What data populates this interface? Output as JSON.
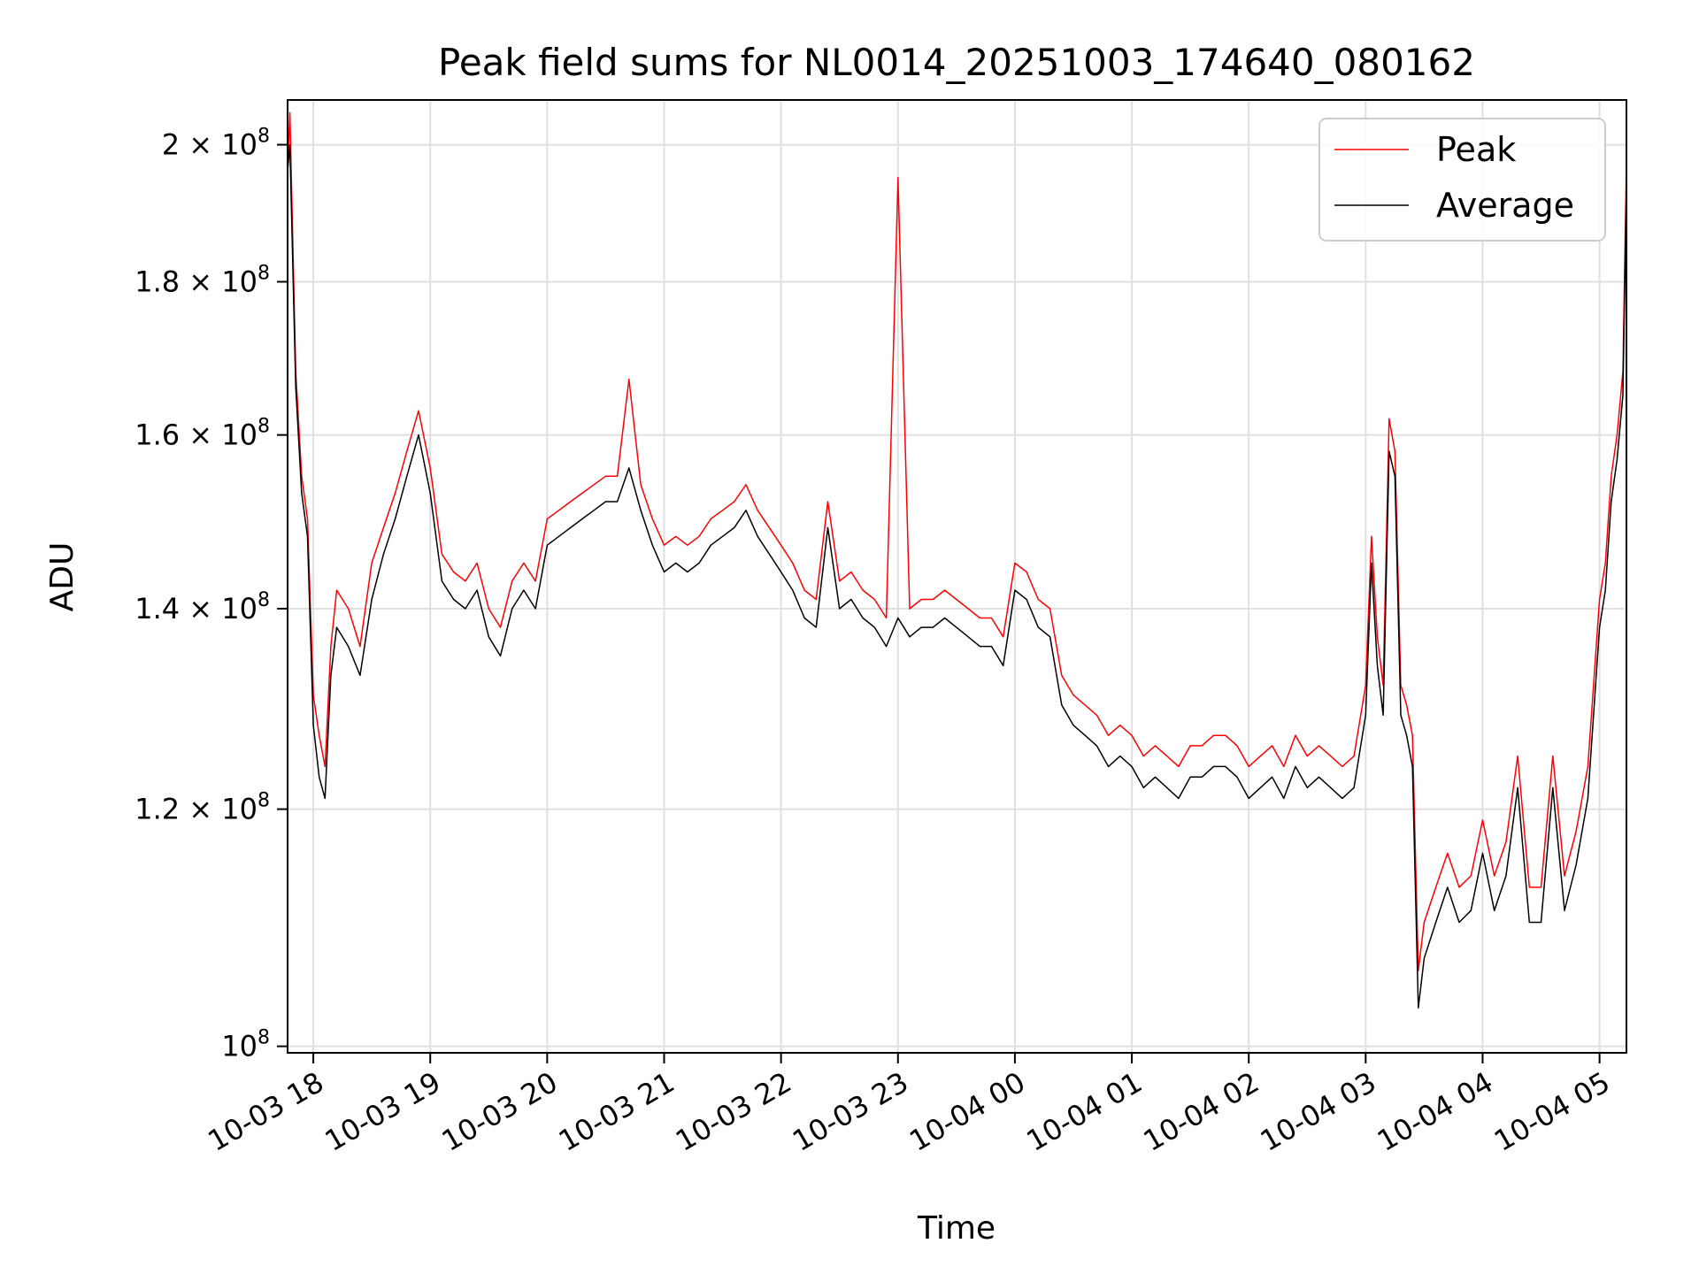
{
  "chart_data": {
    "type": "line",
    "title": "Peak field sums for NL0014_20251003_174640_080162",
    "xlabel": "Time",
    "ylabel": "ADU",
    "yscale": "log",
    "ylim": [
      99500000,
      207000000
    ],
    "xlim_hours": [
      -0.22,
      11.23
    ],
    "grid": true,
    "legend_position": "top-right",
    "x_ticks": [
      {
        "hour": 0,
        "label": "10-03 18"
      },
      {
        "hour": 1,
        "label": "10-03 19"
      },
      {
        "hour": 2,
        "label": "10-03 20"
      },
      {
        "hour": 3,
        "label": "10-03 21"
      },
      {
        "hour": 4,
        "label": "10-03 22"
      },
      {
        "hour": 5,
        "label": "10-03 23"
      },
      {
        "hour": 6,
        "label": "10-04 00"
      },
      {
        "hour": 7,
        "label": "10-04 01"
      },
      {
        "hour": 8,
        "label": "10-04 02"
      },
      {
        "hour": 9,
        "label": "10-04 03"
      },
      {
        "hour": 10,
        "label": "10-04 04"
      },
      {
        "hour": 11,
        "label": "10-04 05"
      }
    ],
    "y_ticks": [
      {
        "value": 100000000,
        "mant": "",
        "exp": "8"
      },
      {
        "value": 120000000,
        "mant": "1.2",
        "exp": "8"
      },
      {
        "value": 140000000,
        "mant": "1.4",
        "exp": "8"
      },
      {
        "value": 160000000,
        "mant": "1.6",
        "exp": "8"
      },
      {
        "value": 180000000,
        "mant": "1.8",
        "exp": "8"
      },
      {
        "value": 200000000,
        "mant": "2",
        "exp": "8"
      }
    ],
    "series": [
      {
        "name": "Peak",
        "color": "#ff0000",
        "x_hours": [
          -0.22,
          -0.2,
          -0.15,
          -0.1,
          -0.05,
          0,
          0.05,
          0.1,
          0.15,
          0.2,
          0.3,
          0.4,
          0.5,
          0.6,
          0.7,
          0.8,
          0.9,
          1,
          1.1,
          1.2,
          1.3,
          1.4,
          1.5,
          1.6,
          1.7,
          1.8,
          1.9,
          2,
          2.1,
          2.2,
          2.3,
          2.4,
          2.5,
          2.6,
          2.7,
          2.8,
          2.9,
          3,
          3.1,
          3.2,
          3.3,
          3.4,
          3.5,
          3.6,
          3.7,
          3.8,
          3.9,
          4,
          4.1,
          4.2,
          4.3,
          4.4,
          4.5,
          4.6,
          4.7,
          4.8,
          4.9,
          5,
          5.1,
          5.2,
          5.3,
          5.4,
          5.5,
          5.6,
          5.7,
          5.8,
          5.9,
          6,
          6.1,
          6.2,
          6.3,
          6.4,
          6.5,
          6.6,
          6.7,
          6.8,
          6.9,
          7,
          7.1,
          7.2,
          7.3,
          7.4,
          7.5,
          7.6,
          7.7,
          7.8,
          7.9,
          8,
          8.1,
          8.2,
          8.3,
          8.4,
          8.5,
          8.6,
          8.7,
          8.8,
          8.9,
          9,
          9.05,
          9.1,
          9.15,
          9.2,
          9.25,
          9.3,
          9.35,
          9.4,
          9.45,
          9.5,
          9.6,
          9.7,
          9.8,
          9.9,
          10,
          10.1,
          10.2,
          10.3,
          10.4,
          10.5,
          10.6,
          10.7,
          10.8,
          10.9,
          11,
          11.05,
          11.1,
          11.15,
          11.2,
          11.23
        ],
        "values": [
          196000000,
          205000000,
          168000000,
          155000000,
          150000000,
          131000000,
          127000000,
          124000000,
          136000000,
          142000000,
          140000000,
          136000000,
          145000000,
          149000000,
          153000000,
          158000000,
          163000000,
          156000000,
          146000000,
          144000000,
          143000000,
          145000000,
          140000000,
          138000000,
          143000000,
          145000000,
          143000000,
          150000000,
          151000000,
          152000000,
          153000000,
          154000000,
          155000000,
          155000000,
          167000000,
          154000000,
          150000000,
          147000000,
          148000000,
          147000000,
          148000000,
          150000000,
          151000000,
          152000000,
          154000000,
          151000000,
          149000000,
          147000000,
          145000000,
          142000000,
          141000000,
          152000000,
          143000000,
          144000000,
          142000000,
          141000000,
          139000000,
          195000000,
          140000000,
          141000000,
          141000000,
          142000000,
          141000000,
          140000000,
          139000000,
          139000000,
          137000000,
          145000000,
          144000000,
          141000000,
          140000000,
          133000000,
          131000000,
          130000000,
          129000000,
          127000000,
          128000000,
          127000000,
          125000000,
          126000000,
          125000000,
          124000000,
          126000000,
          126000000,
          127000000,
          127000000,
          126000000,
          124000000,
          125000000,
          126000000,
          124000000,
          127000000,
          125000000,
          126000000,
          125000000,
          124000000,
          125000000,
          132000000,
          148000000,
          137000000,
          132000000,
          162000000,
          158000000,
          132000000,
          130000000,
          127000000,
          106000000,
          110000000,
          113000000,
          116000000,
          113000000,
          114000000,
          119000000,
          114000000,
          117000000,
          125000000,
          113000000,
          113000000,
          125000000,
          114000000,
          118000000,
          124000000,
          141000000,
          145000000,
          155000000,
          160000000,
          168000000,
          197000000
        ]
      },
      {
        "name": "Average",
        "color": "#000000",
        "x_hours": [
          -0.22,
          -0.2,
          -0.15,
          -0.1,
          -0.05,
          0,
          0.05,
          0.1,
          0.15,
          0.2,
          0.3,
          0.4,
          0.5,
          0.6,
          0.7,
          0.8,
          0.9,
          1,
          1.1,
          1.2,
          1.3,
          1.4,
          1.5,
          1.6,
          1.7,
          1.8,
          1.9,
          2,
          2.1,
          2.2,
          2.3,
          2.4,
          2.5,
          2.6,
          2.7,
          2.8,
          2.9,
          3,
          3.1,
          3.2,
          3.3,
          3.4,
          3.5,
          3.6,
          3.7,
          3.8,
          3.9,
          4,
          4.1,
          4.2,
          4.3,
          4.4,
          4.5,
          4.6,
          4.7,
          4.8,
          4.9,
          5,
          5.1,
          5.2,
          5.3,
          5.4,
          5.5,
          5.6,
          5.7,
          5.8,
          5.9,
          6,
          6.1,
          6.2,
          6.3,
          6.4,
          6.5,
          6.6,
          6.7,
          6.8,
          6.9,
          7,
          7.1,
          7.2,
          7.3,
          7.4,
          7.5,
          7.6,
          7.7,
          7.8,
          7.9,
          8,
          8.1,
          8.2,
          8.3,
          8.4,
          8.5,
          8.6,
          8.7,
          8.8,
          8.9,
          9,
          9.05,
          9.1,
          9.15,
          9.2,
          9.25,
          9.3,
          9.35,
          9.4,
          9.45,
          9.5,
          9.6,
          9.7,
          9.8,
          9.9,
          10,
          10.1,
          10.2,
          10.3,
          10.4,
          10.5,
          10.6,
          10.7,
          10.8,
          10.9,
          11,
          11.05,
          11.1,
          11.15,
          11.2,
          11.23
        ],
        "values": [
          196000000,
          200000000,
          166000000,
          153000000,
          148000000,
          128000000,
          123000000,
          121000000,
          133000000,
          138000000,
          136000000,
          133000000,
          141000000,
          146000000,
          150000000,
          155000000,
          160000000,
          153000000,
          143000000,
          141000000,
          140000000,
          142000000,
          137000000,
          135000000,
          140000000,
          142000000,
          140000000,
          147000000,
          148000000,
          149000000,
          150000000,
          151000000,
          152000000,
          152000000,
          156000000,
          151000000,
          147000000,
          144000000,
          145000000,
          144000000,
          145000000,
          147000000,
          148000000,
          149000000,
          151000000,
          148000000,
          146000000,
          144000000,
          142000000,
          139000000,
          138000000,
          149000000,
          140000000,
          141000000,
          139000000,
          138000000,
          136000000,
          139000000,
          137000000,
          138000000,
          138000000,
          139000000,
          138000000,
          137000000,
          136000000,
          136000000,
          134000000,
          142000000,
          141000000,
          138000000,
          137000000,
          130000000,
          128000000,
          127000000,
          126000000,
          124000000,
          125000000,
          124000000,
          122000000,
          123000000,
          122000000,
          121000000,
          123000000,
          123000000,
          124000000,
          124000000,
          123000000,
          121000000,
          122000000,
          123000000,
          121000000,
          124000000,
          122000000,
          123000000,
          122000000,
          121000000,
          122000000,
          129000000,
          145000000,
          134000000,
          129000000,
          158000000,
          155000000,
          129000000,
          127000000,
          124000000,
          103000000,
          107000000,
          110000000,
          113000000,
          110000000,
          111000000,
          116000000,
          111000000,
          114000000,
          122000000,
          110000000,
          110000000,
          122000000,
          111000000,
          115000000,
          121000000,
          138000000,
          142000000,
          152000000,
          157000000,
          165000000,
          194000000
        ]
      }
    ]
  }
}
